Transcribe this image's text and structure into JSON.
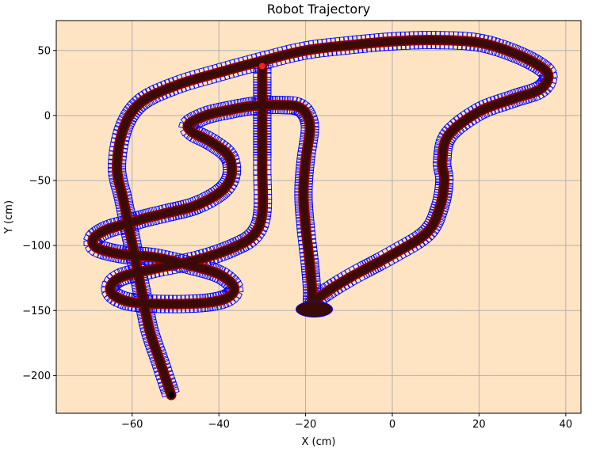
{
  "chart_data": {
    "type": "line",
    "title": "Robot Trajectory",
    "xlabel": "X (cm)",
    "ylabel": "Y (cm)",
    "xlim": [
      -77.5,
      43.5
    ],
    "ylim": [
      -229,
      73
    ],
    "xticks": [
      -60,
      -40,
      -20,
      0,
      20,
      40
    ],
    "yticks": [
      50,
      0,
      -50,
      -100,
      -150,
      -200
    ],
    "xtick_labels": [
      "−60",
      "−40",
      "−20",
      "0",
      "20",
      "40"
    ],
    "ytick_labels": [
      "50",
      "0",
      "−50",
      "−100",
      "−150",
      "−200"
    ],
    "grid": true,
    "legend": "none",
    "colors": {
      "plot_background": "#ffe4c4",
      "path": "#3a0a06",
      "robot_marker": "#8b0000",
      "footprint_outline": "#0000ff",
      "grid": "#b0b0b0"
    },
    "series": [
      {
        "marker_style": "robot pose markers with blue rectangular footprint outlines",
        "x": [
          -51,
          -53.5,
          -56,
          -57.5,
          -59,
          -60.5,
          -62,
          -63.5,
          -62,
          -58,
          -50,
          -40,
          -30,
          -20,
          -10,
          0,
          10,
          20,
          28,
          34,
          36,
          34,
          28,
          20,
          13,
          11.5,
          12,
          11,
          8,
          0,
          -10,
          -17,
          -18.5,
          -18.5,
          -19,
          -20,
          -20.5,
          -20,
          -19,
          -20,
          -22,
          -25,
          -29,
          -33,
          -38,
          -43,
          -47,
          -46,
          -42,
          -38,
          -37,
          -38,
          -41,
          -46,
          -52,
          -57,
          -61,
          -66,
          -69,
          -68,
          -62,
          -55,
          -47,
          -40,
          -36.5,
          -38,
          -43,
          -52,
          -61,
          -65,
          -63,
          -55,
          -45,
          -37,
          -32,
          -30,
          -30,
          -30,
          -30
        ],
        "y": [
          -215,
          -190,
          -165,
          -140,
          -115,
          -90,
          -65,
          -40,
          -10,
          10,
          23,
          33,
          42,
          50,
          54,
          57,
          58,
          56,
          48,
          38,
          30,
          20,
          13,
          3,
          -15,
          -35,
          -50,
          -70,
          -90,
          -107,
          -125,
          -140,
          -147,
          -135,
          -115,
          -85,
          -60,
          -35,
          -10,
          2,
          7,
          8,
          8,
          7,
          4,
          0,
          -7,
          -13,
          -20,
          -30,
          -42,
          -53,
          -62,
          -70,
          -75,
          -79,
          -83,
          -88,
          -95,
          -102,
          -107,
          -109,
          -115,
          -122,
          -132,
          -140,
          -144,
          -145,
          -143,
          -135,
          -125,
          -118,
          -111,
          -102,
          -92,
          -75,
          -40,
          0,
          38
        ]
      }
    ],
    "annotations": {
      "start_dot": [
        -51,
        -215
      ],
      "end_dot": [
        -30,
        38
      ],
      "pause_blob": [
        -18,
        -149
      ]
    }
  }
}
